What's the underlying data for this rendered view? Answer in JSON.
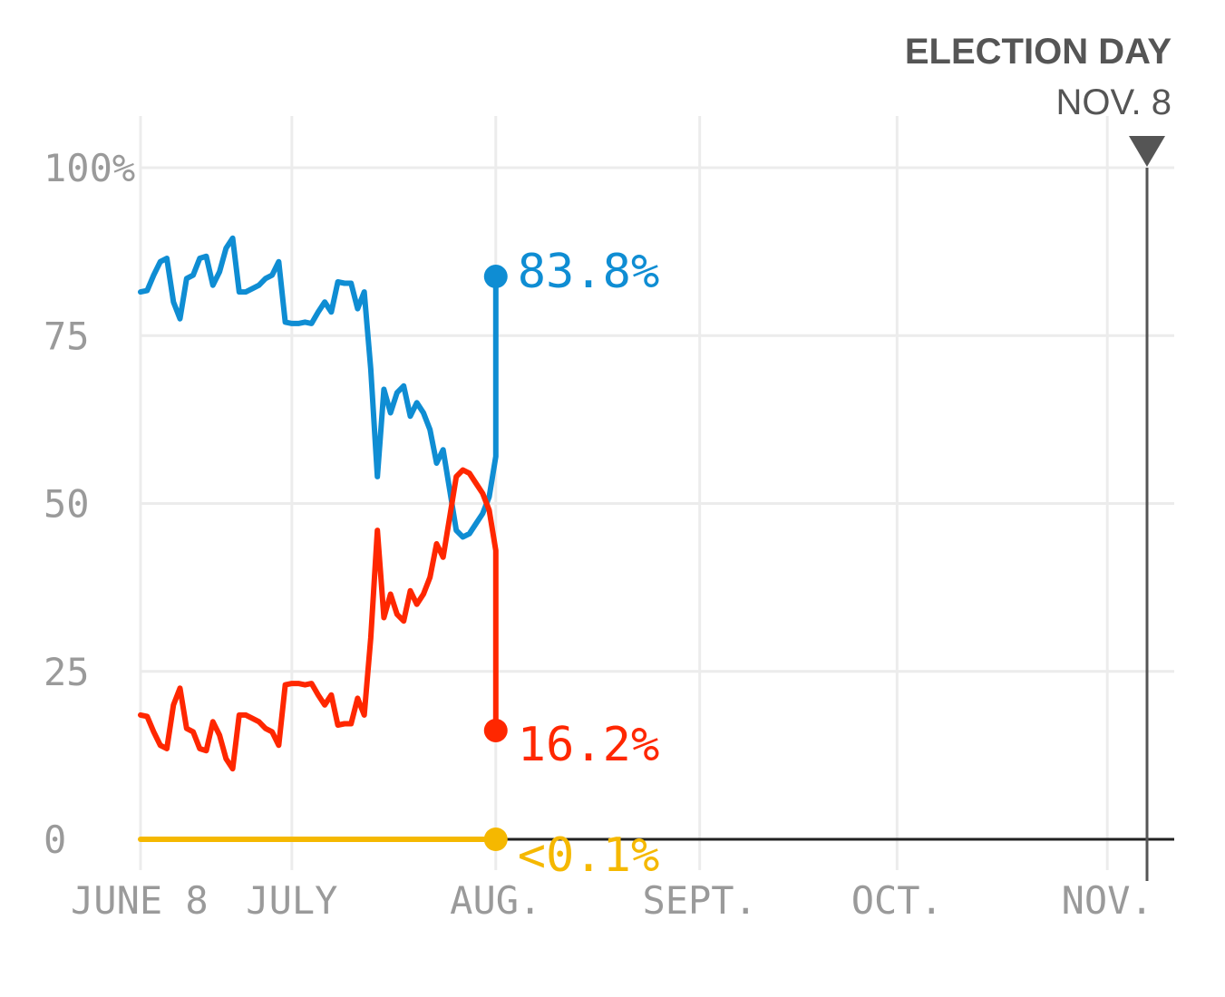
{
  "chart_data": {
    "type": "line",
    "title": "",
    "xlabel": "",
    "ylabel": "",
    "ylim": [
      0,
      100
    ],
    "grid": true,
    "y_ticks": [
      {
        "value": 100,
        "label": "100%"
      },
      {
        "value": 75,
        "label": "75"
      },
      {
        "value": 50,
        "label": "50"
      },
      {
        "value": 25,
        "label": "25"
      },
      {
        "value": 0,
        "label": "0"
      }
    ],
    "x_ticks": [
      {
        "date": "2016-06-08",
        "label": "JUNE 8"
      },
      {
        "date": "2016-07-01",
        "label": "JULY"
      },
      {
        "date": "2016-08-01",
        "label": "AUG."
      },
      {
        "date": "2016-09-01",
        "label": "SEPT."
      },
      {
        "date": "2016-10-01",
        "label": "OCT."
      },
      {
        "date": "2016-11-01",
        "label": "NOV."
      }
    ],
    "x_range": [
      "2016-06-08",
      "2016-11-08"
    ],
    "election_day": {
      "date": "2016-11-08",
      "title": "ELECTION DAY",
      "date_label": "NOV. 8"
    },
    "series": [
      {
        "color": "#0f8dd3",
        "end_label": "83.8%",
        "points": [
          [
            "2016-06-08",
            81.5
          ],
          [
            "2016-06-09",
            81.7
          ],
          [
            "2016-06-10",
            84.0
          ],
          [
            "2016-06-11",
            86.0
          ],
          [
            "2016-06-12",
            86.5
          ],
          [
            "2016-06-13",
            80.0
          ],
          [
            "2016-06-14",
            77.5
          ],
          [
            "2016-06-15",
            83.5
          ],
          [
            "2016-06-16",
            84.0
          ],
          [
            "2016-06-17",
            86.5
          ],
          [
            "2016-06-18",
            86.8
          ],
          [
            "2016-06-19",
            82.5
          ],
          [
            "2016-06-20",
            84.5
          ],
          [
            "2016-06-21",
            88.0
          ],
          [
            "2016-06-22",
            89.5
          ],
          [
            "2016-06-23",
            81.5
          ],
          [
            "2016-06-24",
            81.5
          ],
          [
            "2016-06-25",
            82.0
          ],
          [
            "2016-06-26",
            82.5
          ],
          [
            "2016-06-27",
            83.5
          ],
          [
            "2016-06-28",
            84.0
          ],
          [
            "2016-06-29",
            86.0
          ],
          [
            "2016-06-30",
            77.0
          ],
          [
            "2016-07-01",
            76.8
          ],
          [
            "2016-07-02",
            76.8
          ],
          [
            "2016-07-03",
            77.0
          ],
          [
            "2016-07-04",
            76.8
          ],
          [
            "2016-07-05",
            78.5
          ],
          [
            "2016-07-06",
            80.0
          ],
          [
            "2016-07-07",
            78.5
          ],
          [
            "2016-07-08",
            83.0
          ],
          [
            "2016-07-09",
            82.8
          ],
          [
            "2016-07-10",
            82.8
          ],
          [
            "2016-07-11",
            79.0
          ],
          [
            "2016-07-12",
            81.5
          ],
          [
            "2016-07-13",
            70.0
          ],
          [
            "2016-07-14",
            54.0
          ],
          [
            "2016-07-15",
            67.0
          ],
          [
            "2016-07-16",
            63.5
          ],
          [
            "2016-07-17",
            66.5
          ],
          [
            "2016-07-18",
            67.5
          ],
          [
            "2016-07-19",
            63.0
          ],
          [
            "2016-07-20",
            65.0
          ],
          [
            "2016-07-21",
            63.5
          ],
          [
            "2016-07-22",
            61.0
          ],
          [
            "2016-07-23",
            56.0
          ],
          [
            "2016-07-24",
            58.0
          ],
          [
            "2016-07-25",
            52.0
          ],
          [
            "2016-07-26",
            46.0
          ],
          [
            "2016-07-27",
            45.0
          ],
          [
            "2016-07-28",
            45.5
          ],
          [
            "2016-07-29",
            47.0
          ],
          [
            "2016-07-30",
            48.5
          ],
          [
            "2016-07-31",
            51.0
          ],
          [
            "2016-08-01",
            57.0
          ],
          [
            "2016-08-01",
            83.8
          ]
        ]
      },
      {
        "color": "#ff2700",
        "end_label": "16.2%",
        "points": [
          [
            "2016-06-08",
            18.5
          ],
          [
            "2016-06-09",
            18.3
          ],
          [
            "2016-06-10",
            16.0
          ],
          [
            "2016-06-11",
            14.0
          ],
          [
            "2016-06-12",
            13.5
          ],
          [
            "2016-06-13",
            20.0
          ],
          [
            "2016-06-14",
            22.5
          ],
          [
            "2016-06-15",
            16.5
          ],
          [
            "2016-06-16",
            16.0
          ],
          [
            "2016-06-17",
            13.5
          ],
          [
            "2016-06-18",
            13.2
          ],
          [
            "2016-06-19",
            17.5
          ],
          [
            "2016-06-20",
            15.5
          ],
          [
            "2016-06-21",
            12.0
          ],
          [
            "2016-06-22",
            10.5
          ],
          [
            "2016-06-23",
            18.5
          ],
          [
            "2016-06-24",
            18.5
          ],
          [
            "2016-06-25",
            18.0
          ],
          [
            "2016-06-26",
            17.5
          ],
          [
            "2016-06-27",
            16.5
          ],
          [
            "2016-06-28",
            16.0
          ],
          [
            "2016-06-29",
            14.0
          ],
          [
            "2016-06-30",
            23.0
          ],
          [
            "2016-07-01",
            23.2
          ],
          [
            "2016-07-02",
            23.2
          ],
          [
            "2016-07-03",
            23.0
          ],
          [
            "2016-07-04",
            23.2
          ],
          [
            "2016-07-05",
            21.5
          ],
          [
            "2016-07-06",
            20.0
          ],
          [
            "2016-07-07",
            21.5
          ],
          [
            "2016-07-08",
            17.0
          ],
          [
            "2016-07-09",
            17.2
          ],
          [
            "2016-07-10",
            17.2
          ],
          [
            "2016-07-11",
            21.0
          ],
          [
            "2016-07-12",
            18.5
          ],
          [
            "2016-07-13",
            30.0
          ],
          [
            "2016-07-14",
            46.0
          ],
          [
            "2016-07-15",
            33.0
          ],
          [
            "2016-07-16",
            36.5
          ],
          [
            "2016-07-17",
            33.5
          ],
          [
            "2016-07-18",
            32.5
          ],
          [
            "2016-07-19",
            37.0
          ],
          [
            "2016-07-20",
            35.0
          ],
          [
            "2016-07-21",
            36.5
          ],
          [
            "2016-07-22",
            39.0
          ],
          [
            "2016-07-23",
            44.0
          ],
          [
            "2016-07-24",
            42.0
          ],
          [
            "2016-07-25",
            48.0
          ],
          [
            "2016-07-26",
            54.0
          ],
          [
            "2016-07-27",
            55.0
          ],
          [
            "2016-07-28",
            54.5
          ],
          [
            "2016-07-29",
            53.0
          ],
          [
            "2016-07-30",
            51.5
          ],
          [
            "2016-07-31",
            49.0
          ],
          [
            "2016-08-01",
            43.0
          ],
          [
            "2016-08-01",
            16.2
          ]
        ]
      },
      {
        "color": "#f5b800",
        "end_label": "<0.1%",
        "points": [
          [
            "2016-06-08",
            0.0
          ],
          [
            "2016-08-01",
            0.0
          ]
        ]
      }
    ]
  }
}
